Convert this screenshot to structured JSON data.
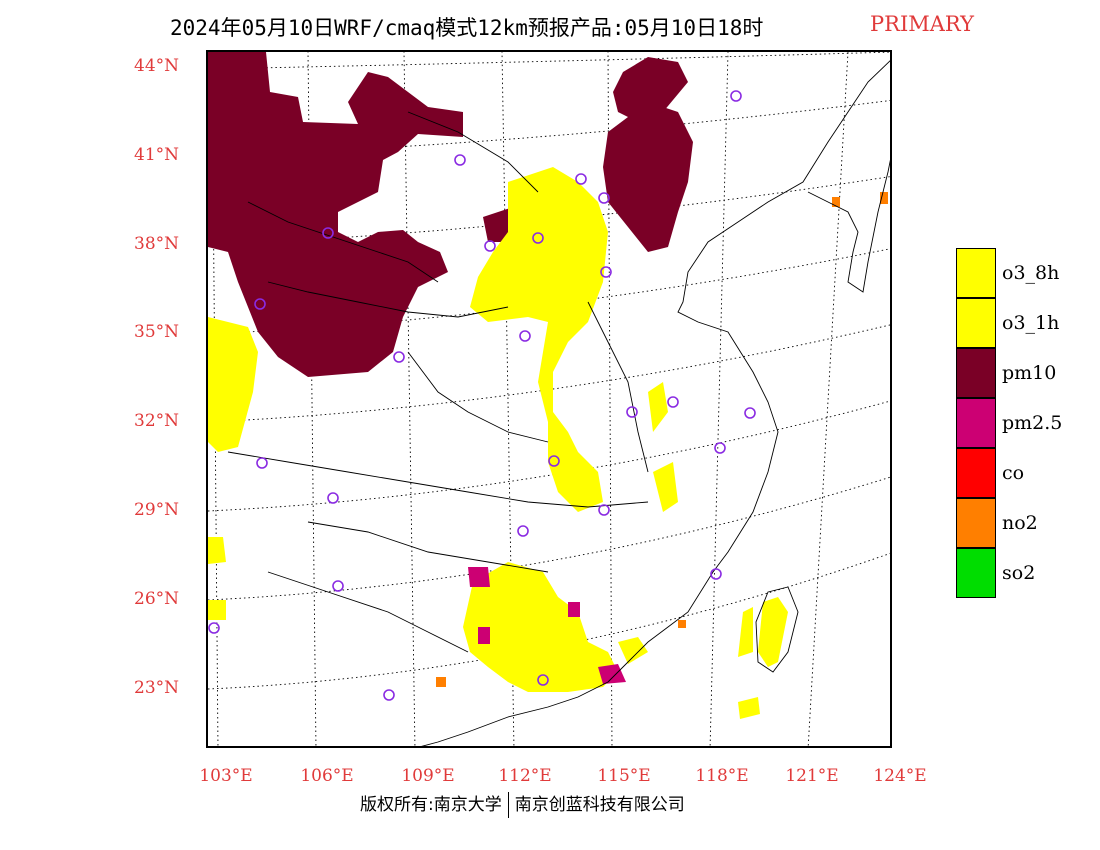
{
  "title": {
    "main": "2024年05月10日WRF/cmaq模式12km预报产品:05月10日18时",
    "tag": "PRIMARY"
  },
  "map": {
    "lat_labels": [
      "44°N",
      "41°N",
      "38°N",
      "35°N",
      "32°N",
      "29°N",
      "26°N",
      "23°N"
    ],
    "lon_labels": [
      "103°E",
      "106°E",
      "109°E",
      "112°E",
      "115°E",
      "118°E",
      "121°E",
      "124°E"
    ],
    "colors": {
      "o3_8h": "#ffff00",
      "o3_1h": "#ffff00",
      "pm10": "#7a0026",
      "pm2_5": "#cc0073",
      "co": "#ff0000",
      "no2": "#ff7f00",
      "so2": "#00dd00",
      "station_marker": "#8a2be2",
      "axis_labels": "#e03a3a"
    }
  },
  "legend": {
    "items": [
      {
        "label": "o3_8h",
        "color": "#ffff00"
      },
      {
        "label": "o3_1h",
        "color": "#ffff00"
      },
      {
        "label": "pm10",
        "color": "#7a0026"
      },
      {
        "label": "pm2.5",
        "color": "#cc0073"
      },
      {
        "label": "co",
        "color": "#ff0000"
      },
      {
        "label": "no2",
        "color": "#ff7f00"
      },
      {
        "label": "so2",
        "color": "#00dd00"
      }
    ]
  },
  "footer": {
    "left": "版权所有:南京大学",
    "right": "南京创蓝科技有限公司"
  }
}
